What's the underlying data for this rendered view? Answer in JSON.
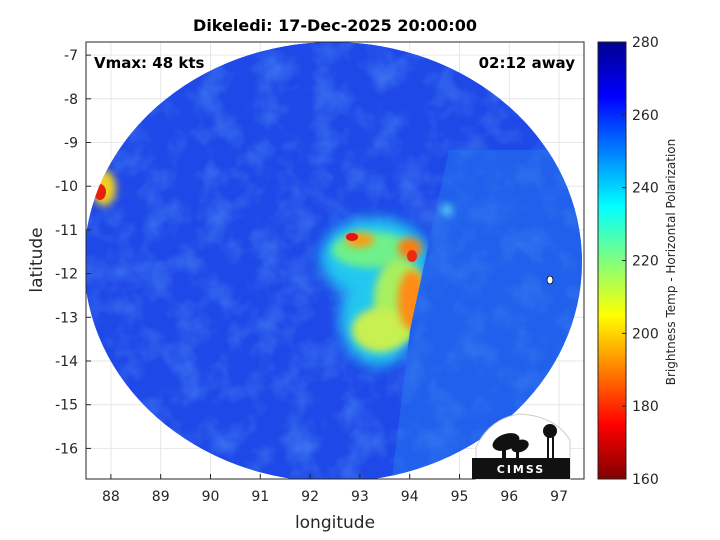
{
  "chart_data": {
    "type": "heatmap",
    "title": "Dikeledi: 17-Dec-2025 20:00:00",
    "xlabel": "longitude",
    "ylabel": "latitude",
    "xlim": [
      87.5,
      97.5
    ],
    "ylim": [
      -16.7,
      -6.7
    ],
    "xticks": [
      "88",
      "89",
      "90",
      "91",
      "92",
      "93",
      "94",
      "95",
      "96",
      "97"
    ],
    "yticks": [
      "-7",
      "-8",
      "-9",
      "-10",
      "-11",
      "-12",
      "-13",
      "-14",
      "-15",
      "-16"
    ],
    "xtick_values": [
      88,
      89,
      90,
      91,
      92,
      93,
      94,
      95,
      96,
      97
    ],
    "ytick_values": [
      -7,
      -8,
      -9,
      -10,
      -11,
      -12,
      -13,
      -14,
      -15,
      -16
    ],
    "grid": true,
    "swath": {
      "center": [
        92.5,
        -11.6
      ],
      "radius_deg": 5.0
    },
    "features": [
      {
        "name": "convective core",
        "lon": 93.6,
        "lat": -12.2,
        "temp_k": 200
      },
      {
        "name": "cold spot",
        "lon": 87.75,
        "lat": -10.2,
        "temp_k": 185
      }
    ],
    "colorbar": {
      "label": "Brightness Temp - Horizontal Polarization",
      "min": 160,
      "max": 280,
      "ticks": [
        "280",
        "260",
        "240",
        "220",
        "200",
        "180",
        "160"
      ],
      "tick_values": [
        280,
        260,
        240,
        220,
        200,
        180,
        160
      ],
      "colormap": "jet"
    }
  },
  "annotations": {
    "vmax": "Vmax: 48 kts",
    "time_away": "02:12 away"
  },
  "logo": {
    "text": "CIMSS"
  }
}
